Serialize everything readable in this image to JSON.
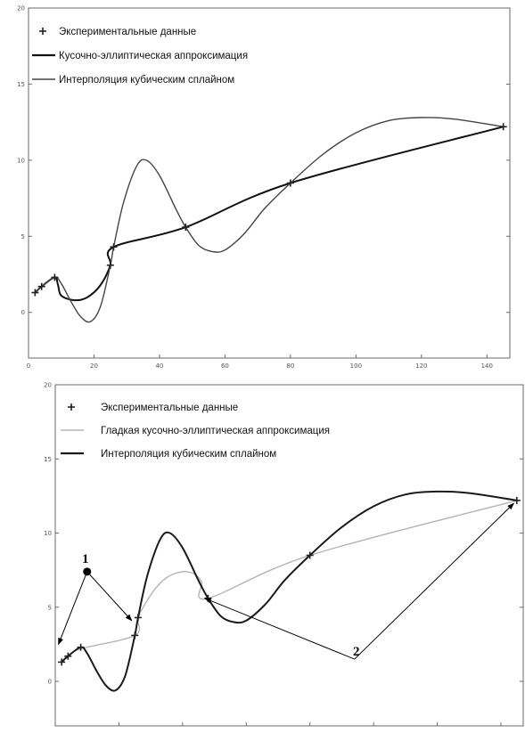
{
  "chart_data": [
    {
      "type": "line",
      "title": "",
      "xlabel": "",
      "ylabel": "",
      "xlim": [
        0,
        147
      ],
      "ylim": [
        -3,
        20
      ],
      "xticks": [
        "0",
        "20",
        "40",
        "60",
        "80",
        "100",
        "120",
        "140"
      ],
      "yticks": [
        "20",
        "15",
        "10",
        "5",
        "0"
      ],
      "legend_position": "top-left",
      "series": [
        {
          "name": "Экспериментальные данные",
          "style": "markers-plus",
          "color": "#222222",
          "x": [
            2,
            4,
            8,
            25,
            26,
            48,
            80,
            145
          ],
          "y": [
            1.3,
            1.7,
            2.3,
            3.1,
            4.3,
            5.6,
            8.5,
            12.2
          ]
        },
        {
          "name": "Кусочно-эллиптическая аппроксимация",
          "style": "line-thick",
          "color": "#111111",
          "x": [
            2,
            4,
            8,
            9,
            10,
            14,
            18,
            22,
            25,
            26,
            48,
            80,
            145
          ],
          "y": [
            1.3,
            1.7,
            2.3,
            1.8,
            1.1,
            0.8,
            1.0,
            1.8,
            3.1,
            4.3,
            5.6,
            8.5,
            12.2
          ]
        },
        {
          "name": "Интерполяция кубическим сплайном",
          "style": "line",
          "color": "#444444",
          "x": [
            2,
            4,
            8,
            10,
            13,
            16,
            19,
            22,
            25,
            26,
            29,
            33,
            36,
            40,
            45,
            48,
            52,
            56,
            60,
            66,
            72,
            80,
            90,
            100,
            110,
            120,
            130,
            145
          ],
          "y": [
            1.3,
            1.7,
            2.3,
            1.9,
            0.7,
            -0.3,
            -0.6,
            0.4,
            3.1,
            4.3,
            7.2,
            9.6,
            10.0,
            9.0,
            6.8,
            5.6,
            4.4,
            4.0,
            4.1,
            5.2,
            6.8,
            8.5,
            10.4,
            11.8,
            12.6,
            12.8,
            12.7,
            12.2
          ]
        }
      ]
    },
    {
      "type": "line",
      "title": "",
      "xlabel": "",
      "ylabel": "",
      "xlim": [
        0,
        147
      ],
      "ylim": [
        -3,
        20
      ],
      "yticks": [
        "20",
        "15",
        "10",
        "5",
        "0"
      ],
      "legend_position": "top-left",
      "series": [
        {
          "name": "Экспериментальные данные",
          "style": "markers-plus",
          "color": "#222222",
          "x": [
            2,
            4,
            8,
            25,
            26,
            48,
            80,
            145
          ],
          "y": [
            1.3,
            1.7,
            2.3,
            3.1,
            4.3,
            5.6,
            8.5,
            12.2
          ]
        },
        {
          "name": "Гладкая кусочно-эллиптическая аппроксимация",
          "style": "line",
          "color": "#b5b5b5",
          "x": [
            2,
            4,
            8,
            25,
            26,
            29,
            32,
            35,
            38,
            41,
            44,
            46,
            48,
            80,
            145
          ],
          "y": [
            1.3,
            1.7,
            2.2,
            3.1,
            4.3,
            5.5,
            6.4,
            7.0,
            7.3,
            7.4,
            7.2,
            6.7,
            5.6,
            8.5,
            12.2
          ]
        },
        {
          "name": "Интерполяция кубическим сплайном",
          "style": "line-thick",
          "color": "#1a1a1a",
          "x": [
            2,
            4,
            8,
            10,
            13,
            16,
            19,
            22,
            25,
            26,
            29,
            33,
            36,
            40,
            45,
            48,
            52,
            56,
            60,
            66,
            72,
            80,
            90,
            100,
            110,
            120,
            130,
            145
          ],
          "y": [
            1.3,
            1.7,
            2.3,
            1.9,
            0.7,
            -0.3,
            -0.6,
            0.4,
            3.1,
            4.3,
            7.2,
            9.6,
            10.0,
            9.0,
            6.8,
            5.6,
            4.4,
            4.0,
            4.1,
            5.2,
            6.8,
            8.5,
            10.4,
            11.8,
            12.6,
            12.8,
            12.7,
            12.2
          ]
        }
      ],
      "annotations": [
        {
          "label": "1",
          "point": [
            10,
            7.4
          ],
          "arrows_to": [
            [
              1,
              2.5
            ],
            [
              24,
              4.1
            ]
          ]
        },
        {
          "label": "2",
          "point": [
            94,
            1.5
          ],
          "arrows_to": [
            [
              47,
              5.6
            ],
            [
              144,
              12.0
            ]
          ]
        }
      ]
    }
  ]
}
